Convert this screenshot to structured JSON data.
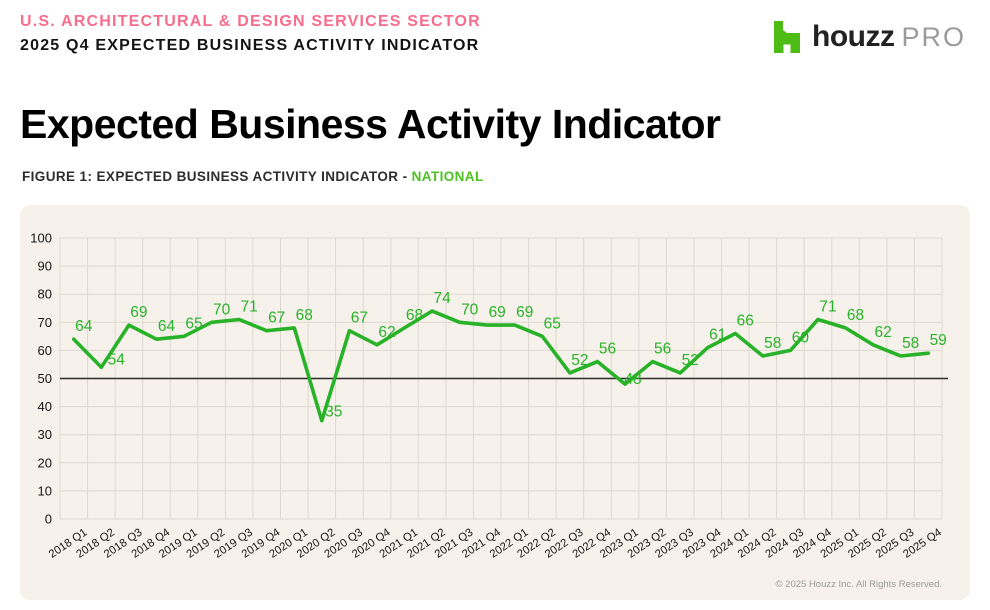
{
  "header": {
    "kicker": "U.S. ARCHITECTURAL & DESIGN SERVICES SECTOR",
    "subtitle": "2025 Q4 EXPECTED BUSINESS ACTIVITY INDICATOR"
  },
  "logo": {
    "brand": "houzz",
    "suffix": "PRO",
    "icon": "houzz-house-icon"
  },
  "page_title": "Expected Business Activity Indicator",
  "figure": {
    "caption_prefix": "FIGURE 1: EXPECTED BUSINESS ACTIVITY INDICATOR - ",
    "region": "NATIONAL"
  },
  "chart_data": {
    "type": "line",
    "title": "FIGURE 1: EXPECTED BUSINESS ACTIVITY INDICATOR - NATIONAL",
    "xlabel": "",
    "ylabel": "",
    "categories": [
      "2018 Q1",
      "2018 Q2",
      "2018 Q3",
      "2018 Q4",
      "2019 Q1",
      "2019 Q2",
      "2019 Q3",
      "2019 Q4",
      "2020 Q1",
      "2020 Q2",
      "2020 Q3",
      "2020 Q4",
      "2021 Q1",
      "2021 Q2",
      "2021 Q3",
      "2021 Q4",
      "2022 Q1",
      "2022 Q2",
      "2022 Q3",
      "2022 Q4",
      "2023 Q1",
      "2023 Q2",
      "2023 Q3",
      "2023 Q4",
      "2024 Q1",
      "2024 Q2",
      "2024 Q3",
      "2024 Q4",
      "2025 Q1",
      "2025 Q2",
      "2025 Q3",
      "2025 Q4"
    ],
    "values": [
      64,
      54,
      69,
      64,
      65,
      70,
      71,
      67,
      68,
      35,
      67,
      62,
      68,
      74,
      70,
      69,
      69,
      65,
      52,
      56,
      48,
      56,
      52,
      61,
      66,
      58,
      60,
      71,
      68,
      62,
      58,
      59
    ],
    "ylim": [
      0,
      100
    ],
    "yticks": [
      0,
      10,
      20,
      30,
      40,
      50,
      60,
      70,
      80,
      90,
      100
    ],
    "reference_line": 50,
    "grid": true,
    "legend_position": "none",
    "data_labels": true,
    "line_color": "#28B228",
    "background": "#F6F2EB"
  },
  "footer": {
    "copyright": "© 2025 Houzz Inc. All Rights Reserved."
  },
  "colors": {
    "accent_pink": "#F96D8C",
    "brand_green": "#4DBC15",
    "national_green": "#4CC123",
    "line_green": "#28B228",
    "grid_line": "#DDD8D0",
    "reference_line": "#2B2B2B",
    "plot_background": "#F6F2EB",
    "footer_gray": "#9A9A96"
  }
}
